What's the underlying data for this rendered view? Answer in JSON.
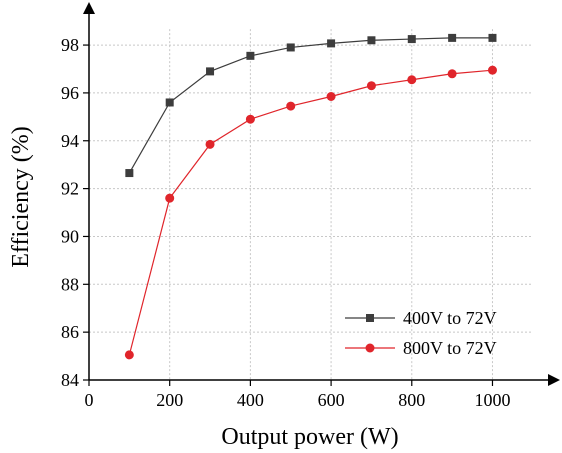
{
  "chart_data": {
    "type": "line",
    "xlabel": "Output power (W)",
    "ylabel": "Efficiency (%)",
    "xlim": [
      0,
      1150
    ],
    "ylim": [
      84,
      99.8
    ],
    "x_ticks": [
      0,
      200,
      400,
      600,
      800,
      1000
    ],
    "y_ticks": [
      84,
      86,
      88,
      90,
      92,
      94,
      96,
      98
    ],
    "grid": true,
    "legend_position": "bottom-right",
    "x": [
      100,
      200,
      300,
      400,
      500,
      600,
      700,
      800,
      900,
      1000
    ],
    "series": [
      {
        "name": "400V to 72V",
        "color": "#3d3d3d",
        "marker": "square",
        "values": [
          92.65,
          95.6,
          96.9,
          97.55,
          97.9,
          98.07,
          98.2,
          98.25,
          98.3,
          98.3
        ]
      },
      {
        "name": "800V to 72V",
        "color": "#e0252b",
        "marker": "circle",
        "values": [
          85.05,
          91.6,
          93.85,
          94.9,
          95.45,
          95.85,
          96.3,
          96.55,
          96.8,
          96.95
        ]
      }
    ]
  }
}
